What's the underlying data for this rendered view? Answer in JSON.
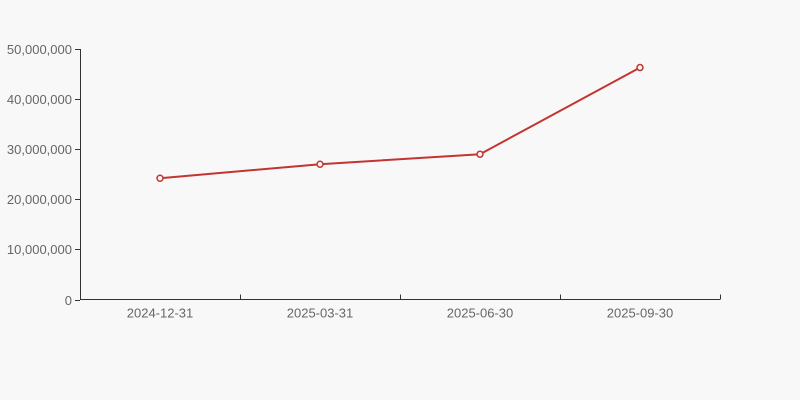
{
  "chart_data": {
    "type": "line",
    "categories": [
      "2024-12-31",
      "2025-03-31",
      "2025-06-30",
      "2025-09-30"
    ],
    "values": [
      24200000,
      27000000,
      29000000,
      46300000
    ],
    "ylim": [
      0,
      50000000
    ],
    "ytick_step": 10000000,
    "ytick_labels": [
      "0",
      "10,000,000",
      "20,000,000",
      "30,000,000",
      "40,000,000",
      "50,000,000"
    ],
    "grid": false,
    "legend": false,
    "marker": "empty-circle",
    "colors": {
      "line": "#c23531",
      "marker_fill": "#f8f8f8",
      "axis": "#333333",
      "label": "#666666",
      "background": "#f8f8f8"
    }
  }
}
